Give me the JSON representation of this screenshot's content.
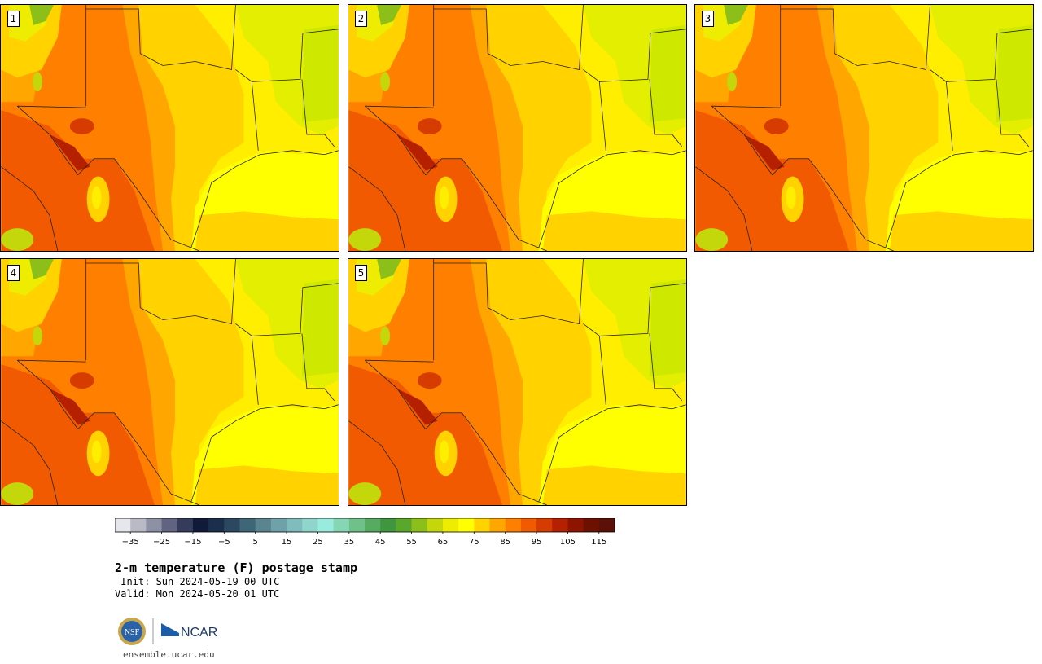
{
  "panels": [
    {
      "label": "1"
    },
    {
      "label": "2"
    },
    {
      "label": "3"
    },
    {
      "label": "4"
    },
    {
      "label": "5"
    }
  ],
  "colorbar": {
    "colors": [
      "#e6e7ec",
      "#b9bac6",
      "#8e90a3",
      "#606480",
      "#343b5b",
      "#0f1b38",
      "#1b2e4b",
      "#2b4860",
      "#3e6676",
      "#5a8590",
      "#6fa1a8",
      "#80bcbc",
      "#8fd5cc",
      "#98ebdd",
      "#86d6b4",
      "#6fc089",
      "#57ab61",
      "#3f963e",
      "#5aa82b",
      "#8cbf19",
      "#c3d70b",
      "#eeec00",
      "#ffff00",
      "#ffd200",
      "#ffa600",
      "#ff7f00",
      "#f25a00",
      "#d63b00",
      "#b52000",
      "#8f1400",
      "#6e1000",
      "#5c1108"
    ],
    "tick_labels": [
      "−35",
      "−25",
      "−15",
      "−5",
      "5",
      "15",
      "25",
      "35",
      "45",
      "55",
      "65",
      "75",
      "85",
      "95",
      "105",
      "115"
    ],
    "tick_values": [
      -35,
      -25,
      -15,
      -5,
      5,
      15,
      25,
      35,
      45,
      55,
      65,
      75,
      85,
      95,
      105,
      115
    ],
    "min": -40,
    "max": 120
  },
  "title": "2-m temperature (F) postage stamp",
  "init_line": " Init: Sun 2024-05-19 00 UTC",
  "valid_line": "Valid: Mon 2024-05-20 01 UTC",
  "logo": {
    "nsf_text": "NSF",
    "ncar_text": "NCAR"
  },
  "url": "ensemble.ucar.edu"
}
